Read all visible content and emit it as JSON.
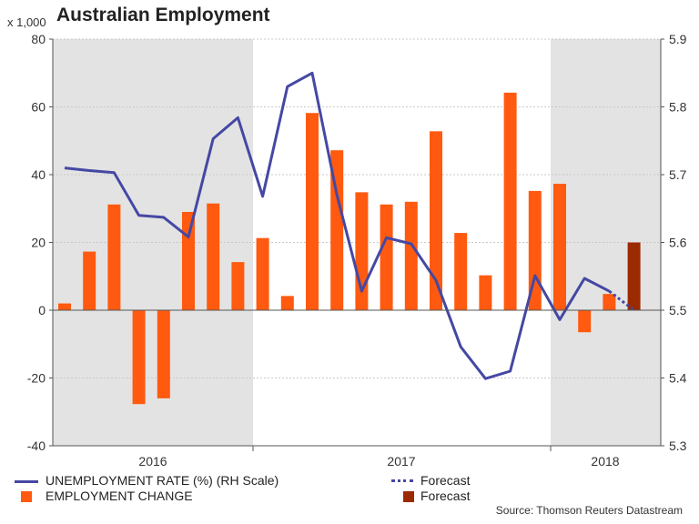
{
  "title": "Australian Employment",
  "unit_label": "x 1,000",
  "source": "Source: Thomson Reuters Datastream",
  "colors": {
    "bar": "#ff5a0f",
    "bar_forecast": "#9c2a00",
    "line": "#4548a3",
    "shade": "#e3e3e3"
  },
  "legend": {
    "line_label": "UNEMPLOYMENT RATE (%) (RH Scale)",
    "line_forecast_label": "Forecast",
    "bar_label": "EMPLOYMENT CHANGE",
    "bar_forecast_label": "Forecast"
  },
  "chart_data": {
    "type": "bar",
    "title": "Australian Employment",
    "x_year_labels": [
      "2016",
      "2017",
      "2018"
    ],
    "left_axis": {
      "ticks": [
        "80",
        "60",
        "40",
        "20",
        "0",
        "-20",
        "-40"
      ],
      "ylim": [
        -40,
        80
      ]
    },
    "right_axis": {
      "ticks": [
        "5.9",
        "5.8",
        "5.7",
        "5.6",
        "5.5",
        "5.4",
        "5.3"
      ],
      "ylim": [
        5.3,
        5.9
      ]
    },
    "series": [
      {
        "name": "EMPLOYMENT CHANGE",
        "type": "bar",
        "axis": "left",
        "values": [
          2,
          17.3,
          31.2,
          -27.7,
          -26,
          29,
          31.5,
          14.2,
          21.3,
          4.2,
          58.2,
          47.2,
          34.8,
          31.2,
          32,
          52.8,
          22.8,
          10.3,
          64.2,
          35.2,
          37.3,
          -6.5,
          4.8
        ]
      },
      {
        "name": "Forecast",
        "type": "bar",
        "axis": "left",
        "index": 23,
        "values": [
          20
        ]
      },
      {
        "name": "UNEMPLOYMENT RATE (%) (RH Scale)",
        "type": "line",
        "axis": "right",
        "values": [
          5.71,
          5.706,
          5.703,
          5.64,
          5.637,
          5.608,
          5.753,
          5.784,
          5.668,
          5.83,
          5.85,
          5.67,
          5.528,
          5.607,
          5.598,
          5.544,
          5.446,
          5.399,
          5.41,
          5.551,
          5.486,
          5.547,
          5.528
        ]
      },
      {
        "name": "Forecast",
        "type": "line",
        "axis": "right",
        "start_index": 22,
        "values": [
          5.528,
          5.5
        ]
      }
    ],
    "shaded_periods": [
      "2016",
      "2018"
    ],
    "grid": true
  }
}
